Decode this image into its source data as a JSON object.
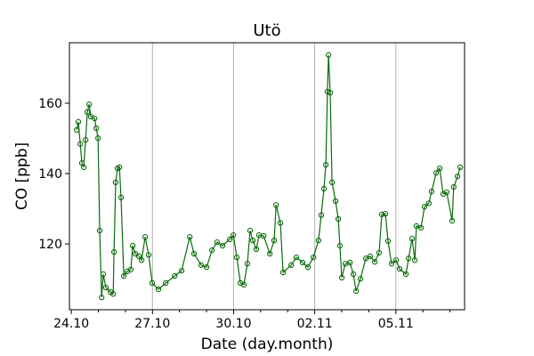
{
  "chart_data": {
    "type": "line",
    "title": "Utö",
    "xlabel": "Date (day.month)",
    "ylabel": "CO [ppb]",
    "x_units": "days since 24.10",
    "xlim": [
      -0.07,
      14.54
    ],
    "ylim": [
      101.3,
      177.2
    ],
    "x_ticks": [
      {
        "value": 0,
        "label": "24.10"
      },
      {
        "value": 3,
        "label": "27.10"
      },
      {
        "value": 6,
        "label": "30.10"
      },
      {
        "value": 9,
        "label": "02.11"
      },
      {
        "value": 12,
        "label": "05.11"
      }
    ],
    "x_minor_ticks": [
      1,
      2,
      4,
      5,
      7,
      8,
      10,
      11,
      13,
      14
    ],
    "y_ticks": [
      {
        "value": 120,
        "label": "120"
      },
      {
        "value": 140,
        "label": "140"
      },
      {
        "value": 160,
        "label": "160"
      }
    ],
    "grid": "vertical lines at major x ticks",
    "color": "#0b6b0b",
    "series": [
      {
        "name": "CO",
        "x": [
          0.2,
          0.26,
          0.33,
          0.39,
          0.46,
          0.53,
          0.59,
          0.66,
          0.72,
          0.86,
          0.92,
          0.99,
          1.05,
          1.12,
          1.18,
          1.28,
          1.45,
          1.55,
          1.58,
          1.64,
          1.71,
          1.78,
          1.84,
          1.94,
          2.07,
          2.2,
          2.27,
          2.37,
          2.5,
          2.6,
          2.73,
          2.86,
          2.99,
          3.22,
          3.49,
          3.82,
          4.08,
          4.38,
          4.54,
          4.8,
          5.0,
          5.2,
          5.39,
          5.59,
          5.86,
          5.99,
          6.12,
          6.25,
          6.38,
          6.51,
          6.61,
          6.71,
          6.84,
          6.94,
          7.11,
          7.34,
          7.5,
          7.57,
          7.73,
          7.83,
          8.13,
          8.32,
          8.55,
          8.75,
          8.95,
          9.14,
          9.24,
          9.34,
          9.41,
          9.47,
          9.51,
          9.57,
          9.64,
          9.77,
          9.87,
          9.93,
          10.0,
          10.13,
          10.3,
          10.43,
          10.53,
          10.69,
          10.89,
          11.05,
          11.22,
          11.38,
          11.48,
          11.61,
          11.71,
          11.84,
          12.01,
          12.14,
          12.37,
          12.47,
          12.6,
          12.7,
          12.76,
          12.93,
          13.06,
          13.22,
          13.32,
          13.49,
          13.62,
          13.75,
          13.88,
          14.08,
          14.14,
          14.28,
          14.38
        ],
        "y": [
          152.4,
          154.7,
          148.4,
          143,
          141.8,
          149.6,
          157.5,
          159.7,
          156.2,
          155.7,
          152.9,
          150.1,
          123.8,
          104.8,
          111.4,
          107.6,
          106.3,
          105.8,
          117.7,
          137.5,
          141.5,
          141.8,
          133.2,
          110.9,
          112.2,
          112.7,
          119.5,
          117.2,
          116.5,
          115.4,
          122,
          116.9,
          108.9,
          107.1,
          108.9,
          110.9,
          112.4,
          122,
          117.2,
          114,
          113.4,
          118.2,
          120.5,
          119.5,
          121.3,
          122.5,
          116.2,
          108.9,
          108.4,
          114.4,
          123.8,
          121,
          118.5,
          122.5,
          122.3,
          117.2,
          121,
          131.1,
          126,
          111.9,
          114,
          116.2,
          114.7,
          113.4,
          116.2,
          121,
          128.2,
          135.7,
          142.5,
          163.3,
          173.7,
          163,
          137.5,
          132.2,
          127.1,
          119.5,
          110.4,
          114.4,
          114.7,
          111.4,
          106.6,
          110.1,
          115.9,
          116.5,
          114.9,
          117.5,
          128.4,
          128.6,
          120.8,
          114.4,
          115.4,
          112.9,
          111.4,
          115.9,
          121.5,
          115.4,
          125.1,
          124.6,
          130.6,
          131.6,
          134.9,
          140.2,
          141.5,
          134.2,
          134.7,
          126.6,
          136.2,
          139.2,
          141.8
        ]
      }
    ]
  }
}
